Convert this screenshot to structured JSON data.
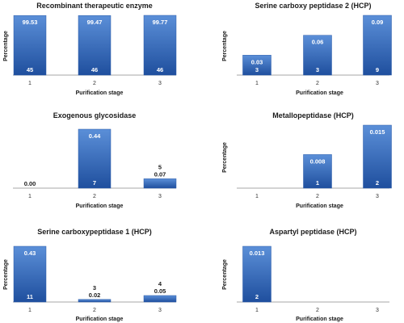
{
  "bar_color_top": "#5b8fd8",
  "bar_color_bottom": "#1f4f9e",
  "chart_data": [
    {
      "type": "bar",
      "title": "Recombinant therapeutic enzyme",
      "xlabel": "Purification stage",
      "ylabel": "Percentage",
      "categories": [
        "1",
        "2",
        "3"
      ],
      "values": [
        99.53,
        99.47,
        99.77
      ],
      "value_labels": [
        "99.53",
        "99.47",
        "99.77"
      ],
      "count_labels": [
        "45",
        "46",
        "46"
      ]
    },
    {
      "type": "bar",
      "title": "Serine carboxy peptidase 2 (HCP)",
      "xlabel": "Purification stage",
      "ylabel": "Percentage",
      "categories": [
        "1",
        "2",
        "3"
      ],
      "values": [
        0.03,
        0.06,
        0.09
      ],
      "value_labels": [
        "0.03",
        "0.06",
        "0.09"
      ],
      "count_labels": [
        "3",
        "3",
        "9"
      ]
    },
    {
      "type": "bar",
      "title": "Exogenous glycosidase",
      "xlabel": "Purification stage",
      "ylabel": "",
      "categories": [
        "1",
        "2",
        "3"
      ],
      "values": [
        0.0,
        0.44,
        0.07
      ],
      "value_labels": [
        "0.00",
        "0.44",
        "0.07"
      ],
      "count_labels": [
        "",
        "7",
        "5"
      ]
    },
    {
      "type": "bar",
      "title": "Metallopeptidase (HCP)",
      "xlabel": "Purification stage",
      "ylabel": "Percentage",
      "categories": [
        "1",
        "2",
        "3"
      ],
      "values": [
        0,
        0.008,
        0.015
      ],
      "value_labels": [
        "",
        "0.008",
        "0.015"
      ],
      "count_labels": [
        "",
        "1",
        "2"
      ]
    },
    {
      "type": "bar",
      "title": "Serine carboxypeptidase 1 (HCP)",
      "xlabel": "Purification stage",
      "ylabel": "Percentage",
      "categories": [
        "1",
        "2",
        "3"
      ],
      "values": [
        0.43,
        0.02,
        0.05
      ],
      "value_labels": [
        "0.43",
        "0.02",
        "0.05"
      ],
      "count_labels": [
        "11",
        "3",
        "4"
      ]
    },
    {
      "type": "bar",
      "title": "Aspartyl peptidase (HCP)",
      "xlabel": "Purification stage",
      "ylabel": "Percentage",
      "categories": [
        "1",
        "2",
        "3"
      ],
      "values": [
        0.013,
        0,
        0
      ],
      "value_labels": [
        "0.013",
        "",
        ""
      ],
      "count_labels": [
        "2",
        "",
        ""
      ]
    }
  ]
}
